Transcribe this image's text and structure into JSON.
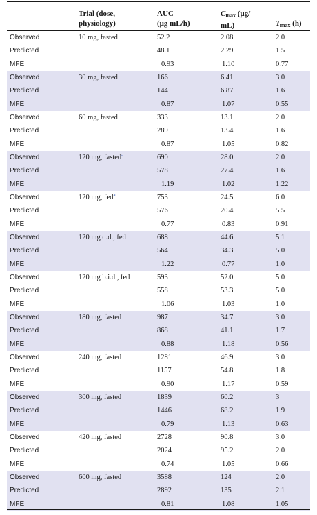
{
  "header": {
    "col_trial": [
      "Trial (dose,",
      "physiology)"
    ],
    "col_auc": [
      "AUC",
      "(μg mL/h)"
    ],
    "col_cmax": {
      "base": "C",
      "sub": "max",
      "rest1": " (μg/",
      "rest2": "mL)"
    },
    "col_tmax": {
      "base": "T",
      "sub": "max",
      "rest": " (h)"
    }
  },
  "labels": {
    "observed": "Observed",
    "predicted": "Predicted",
    "mfe": "MFE"
  },
  "rows": [
    {
      "trial": "10 mg, fasted",
      "fn": "",
      "obs": [
        "52.2",
        "2.08",
        "2.0"
      ],
      "pred": [
        "48.1",
        "2.29",
        "1.5"
      ],
      "mfe": [
        "0.93",
        "1.10",
        "0.77"
      ]
    },
    {
      "trial": "30 mg, fasted",
      "fn": "",
      "obs": [
        "166",
        "6.41",
        "3.0"
      ],
      "pred": [
        "144",
        "6.87",
        "1.6"
      ],
      "mfe": [
        "0.87",
        "1.07",
        "0.55"
      ]
    },
    {
      "trial": "60 mg, fasted",
      "fn": "",
      "obs": [
        "333",
        "13.1",
        "2.0"
      ],
      "pred": [
        "289",
        "13.4",
        "1.6"
      ],
      "mfe": [
        "0.87",
        "1.05",
        "0.82"
      ]
    },
    {
      "trial": "120 mg, fasted",
      "fn": "a",
      "obs": [
        "690",
        "28.0",
        "2.0"
      ],
      "pred": [
        "578",
        "27.4",
        "1.6"
      ],
      "mfe": [
        "1.19",
        "1.02",
        "1.22"
      ]
    },
    {
      "trial": "120 mg, fed",
      "fn": "a",
      "obs": [
        "753",
        "24.5",
        "6.0"
      ],
      "pred": [
        "576",
        "20.4",
        "5.5"
      ],
      "mfe": [
        "0.77",
        "0.83",
        "0.91"
      ]
    },
    {
      "trial": "120 mg q.d., fed",
      "fn": "",
      "obs": [
        "688",
        "44.6",
        "5.1"
      ],
      "pred": [
        "564",
        "34.3",
        "5.0"
      ],
      "mfe": [
        "1.22",
        "0.77",
        "1.0"
      ]
    },
    {
      "trial": "120 mg b.i.d., fed",
      "fn": "",
      "obs": [
        "593",
        "52.0",
        "5.0"
      ],
      "pred": [
        "558",
        "53.3",
        "5.0"
      ],
      "mfe": [
        "1.06",
        "1.03",
        "1.0"
      ]
    },
    {
      "trial": "180 mg, fasted",
      "fn": "",
      "obs": [
        "987",
        "34.7",
        "3.0"
      ],
      "pred": [
        "868",
        "41.1",
        "1.7"
      ],
      "mfe": [
        "0.88",
        "1.18",
        "0.56"
      ]
    },
    {
      "trial": "240 mg, fasted",
      "fn": "",
      "obs": [
        "1281",
        "46.9",
        "3.0"
      ],
      "pred": [
        "1157",
        "54.8",
        "1.8"
      ],
      "mfe": [
        "0.90",
        "1.17",
        "0.59"
      ]
    },
    {
      "trial": "300 mg, fasted",
      "fn": "",
      "obs": [
        "1839",
        "60.2",
        "3"
      ],
      "pred": [
        "1446",
        "68.2",
        "1.9"
      ],
      "mfe": [
        "0.79",
        "1.13",
        "0.63"
      ]
    },
    {
      "trial": "420 mg, fasted",
      "fn": "",
      "obs": [
        "2728",
        "90.8",
        "3.0"
      ],
      "pred": [
        "2024",
        "95.2",
        "2.0"
      ],
      "mfe": [
        "0.74",
        "1.05",
        "0.66"
      ]
    },
    {
      "trial": "600 mg, fasted",
      "fn": "",
      "obs": [
        "3588",
        "124",
        "2.0"
      ],
      "pred": [
        "2892",
        "135",
        "2.1"
      ],
      "mfe": [
        "0.81",
        "1.08",
        "1.05"
      ]
    }
  ]
}
